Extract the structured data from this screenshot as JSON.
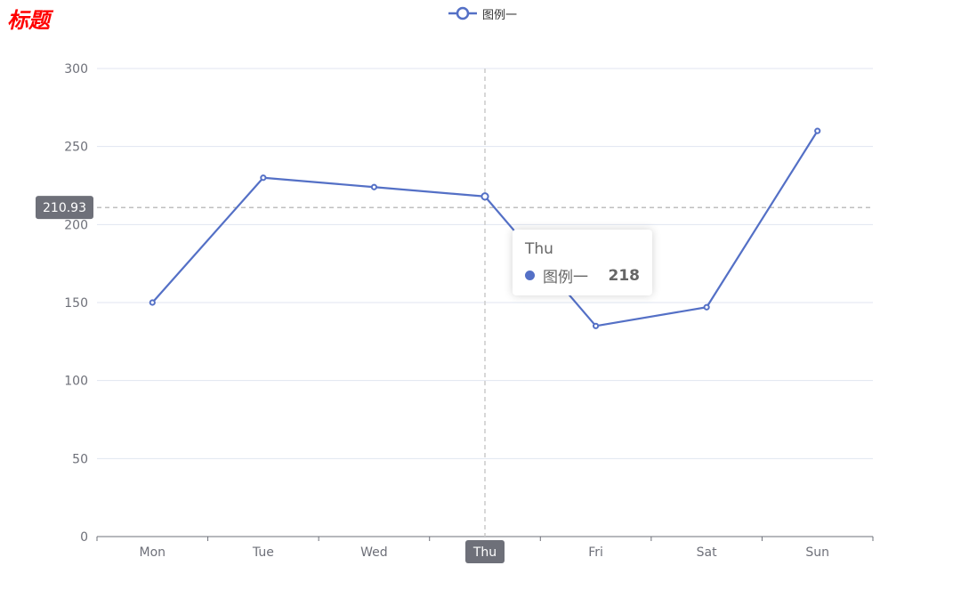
{
  "chart_data": {
    "type": "line",
    "title": "标题",
    "categories": [
      "Mon",
      "Tue",
      "Wed",
      "Thu",
      "Fri",
      "Sat",
      "Sun"
    ],
    "series": [
      {
        "name": "图例一",
        "values": [
          150,
          230,
          224,
          218,
          135,
          147,
          260
        ],
        "color": "#5470c6"
      }
    ],
    "ylim": [
      0,
      300
    ],
    "yticks": [
      0,
      50,
      100,
      150,
      200,
      250,
      300
    ],
    "grid": true,
    "legend_position": "top-center",
    "axis_pointer": {
      "category": "Thu",
      "y_value_label": "210.93"
    },
    "tooltip": {
      "title": "Thu",
      "series_name": "图例一",
      "value": "218"
    }
  }
}
